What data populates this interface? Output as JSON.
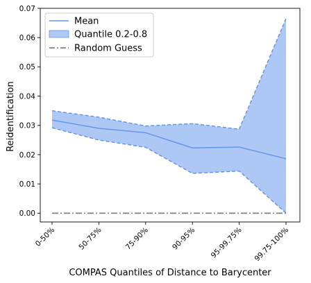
{
  "chart_data": {
    "type": "line",
    "title": "",
    "xlabel": "COMPAS Quantiles of Distance to Barycenter",
    "ylabel": "Reidentification",
    "categories": [
      "0-50%",
      "50-75%",
      "75-90%",
      "90-95%",
      "95-99.75%",
      "99.75-100%"
    ],
    "ylim": [
      -0.003,
      0.07
    ],
    "yticks": [
      0.0,
      0.01,
      0.02,
      0.03,
      0.04,
      0.05,
      0.06,
      0.07
    ],
    "ytick_labels": [
      "0.00",
      "0.01",
      "0.02",
      "0.03",
      "0.04",
      "0.05",
      "0.06",
      "0.07"
    ],
    "grid": false,
    "legend_position": "top-left",
    "series": [
      {
        "name": "Mean",
        "kind": "line",
        "color": "#6495ed",
        "values": [
          0.0318,
          0.029,
          0.0275,
          0.0223,
          0.0226,
          0.0186
        ]
      },
      {
        "name": "Quantile 0.2-0.8",
        "kind": "band",
        "color": "#6495ed",
        "fill": "#aec8f5",
        "lower": [
          0.0292,
          0.025,
          0.0225,
          0.0136,
          0.0144,
          0.0
        ],
        "upper": [
          0.035,
          0.0328,
          0.0298,
          0.0306,
          0.0287,
          0.0665
        ]
      },
      {
        "name": "Random Guess",
        "kind": "dashdot",
        "color": "#808080",
        "values": [
          0.0,
          0.0,
          0.0,
          0.0,
          0.0,
          0.0
        ]
      }
    ]
  }
}
